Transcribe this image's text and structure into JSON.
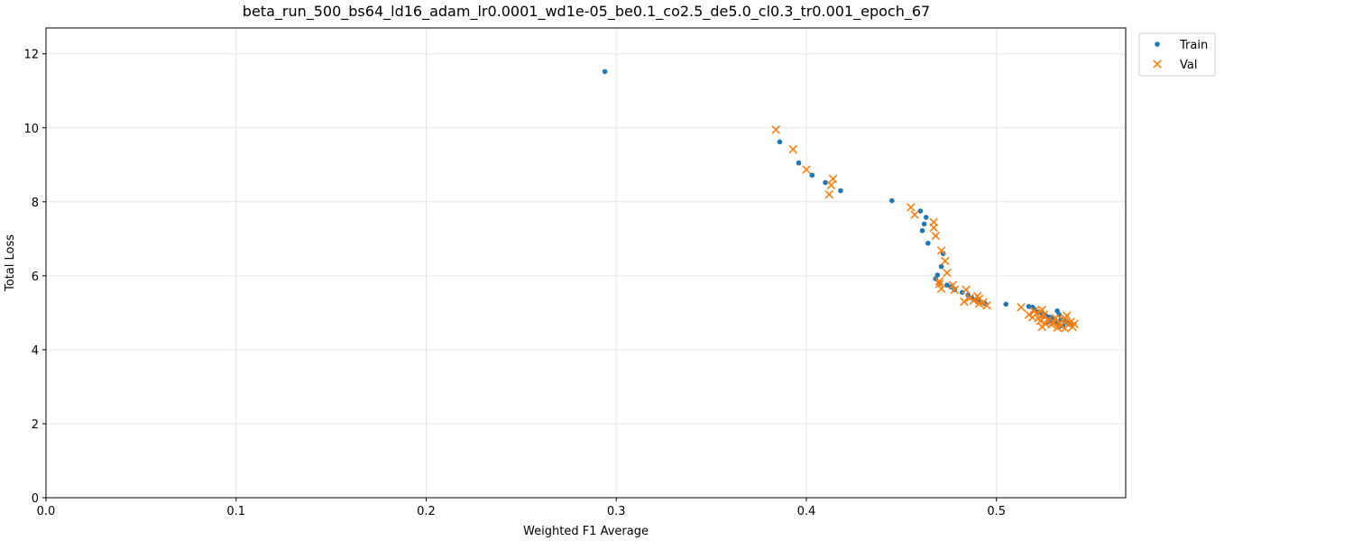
{
  "chart_data": {
    "type": "scatter",
    "title": "beta_run_500_bs64_ld16_adam_lr0.0001_wd1e-05_be0.1_co2.5_de5.0_cl0.3_tr0.001_epoch_67",
    "xlabel": "Weighted F1 Average",
    "ylabel": "Total Loss",
    "xlim": [
      0,
      0.568
    ],
    "ylim": [
      0,
      12.7
    ],
    "xticks": [
      0.0,
      0.1,
      0.2,
      0.3,
      0.4,
      0.5
    ],
    "xtick_labels": [
      "0.0",
      "0.1",
      "0.2",
      "0.3",
      "0.4",
      "0.5"
    ],
    "yticks": [
      0,
      2,
      4,
      6,
      8,
      10,
      12
    ],
    "ytick_labels": [
      "0",
      "2",
      "4",
      "6",
      "8",
      "10",
      "12"
    ],
    "grid": true,
    "legend": "outside-top-right",
    "series": [
      {
        "name": "Train",
        "marker": "circle",
        "color": "#1f77b4",
        "points": [
          [
            0.294,
            11.52
          ],
          [
            0.386,
            9.62
          ],
          [
            0.396,
            9.05
          ],
          [
            0.403,
            8.72
          ],
          [
            0.41,
            8.52
          ],
          [
            0.418,
            8.3
          ],
          [
            0.445,
            8.03
          ],
          [
            0.46,
            7.75
          ],
          [
            0.463,
            7.58
          ],
          [
            0.462,
            7.4
          ],
          [
            0.461,
            7.22
          ],
          [
            0.464,
            6.88
          ],
          [
            0.472,
            6.6
          ],
          [
            0.471,
            6.25
          ],
          [
            0.469,
            6.02
          ],
          [
            0.468,
            5.92
          ],
          [
            0.47,
            5.8
          ],
          [
            0.474,
            5.75
          ],
          [
            0.476,
            5.7
          ],
          [
            0.478,
            5.62
          ],
          [
            0.482,
            5.55
          ],
          [
            0.485,
            5.48
          ],
          [
            0.487,
            5.4
          ],
          [
            0.489,
            5.35
          ],
          [
            0.491,
            5.3
          ],
          [
            0.494,
            5.25
          ],
          [
            0.505,
            5.23
          ],
          [
            0.517,
            5.17
          ],
          [
            0.519,
            5.15
          ],
          [
            0.52,
            5.08
          ],
          [
            0.522,
            5.02
          ],
          [
            0.524,
            4.98
          ],
          [
            0.526,
            4.92
          ],
          [
            0.528,
            4.88
          ],
          [
            0.53,
            4.85
          ],
          [
            0.532,
            5.05
          ],
          [
            0.533,
            4.95
          ],
          [
            0.534,
            4.82
          ],
          [
            0.536,
            4.78
          ],
          [
            0.537,
            4.74
          ],
          [
            0.538,
            4.7
          ],
          [
            0.539,
            4.68
          ],
          [
            0.535,
            4.65
          ],
          [
            0.531,
            4.72
          ],
          [
            0.529,
            4.8
          ],
          [
            0.525,
            4.9
          ],
          [
            0.527,
            4.75
          ],
          [
            0.533,
            4.62
          ]
        ]
      },
      {
        "name": "Val",
        "marker": "x",
        "color": "#ff7f0e",
        "points": [
          [
            0.384,
            9.95
          ],
          [
            0.393,
            9.42
          ],
          [
            0.4,
            8.87
          ],
          [
            0.414,
            8.62
          ],
          [
            0.413,
            8.45
          ],
          [
            0.412,
            8.2
          ],
          [
            0.455,
            7.85
          ],
          [
            0.457,
            7.65
          ],
          [
            0.467,
            7.45
          ],
          [
            0.467,
            7.3
          ],
          [
            0.468,
            7.08
          ],
          [
            0.471,
            6.68
          ],
          [
            0.473,
            6.4
          ],
          [
            0.474,
            6.08
          ],
          [
            0.47,
            5.85
          ],
          [
            0.47,
            5.78
          ],
          [
            0.471,
            5.65
          ],
          [
            0.477,
            5.75
          ],
          [
            0.478,
            5.62
          ],
          [
            0.484,
            5.62
          ],
          [
            0.483,
            5.3
          ],
          [
            0.486,
            5.4
          ],
          [
            0.488,
            5.33
          ],
          [
            0.49,
            5.45
          ],
          [
            0.491,
            5.38
          ],
          [
            0.491,
            5.25
          ],
          [
            0.493,
            5.28
          ],
          [
            0.495,
            5.2
          ],
          [
            0.513,
            5.15
          ],
          [
            0.517,
            4.95
          ],
          [
            0.519,
            4.88
          ],
          [
            0.52,
            5.05
          ],
          [
            0.521,
            4.98
          ],
          [
            0.522,
            4.85
          ],
          [
            0.523,
            4.78
          ],
          [
            0.524,
            5.08
          ],
          [
            0.524,
            4.62
          ],
          [
            0.525,
            4.95
          ],
          [
            0.526,
            4.7
          ],
          [
            0.527,
            4.8
          ],
          [
            0.529,
            4.68
          ],
          [
            0.53,
            4.75
          ],
          [
            0.531,
            4.85
          ],
          [
            0.532,
            4.6
          ],
          [
            0.533,
            4.72
          ],
          [
            0.534,
            4.65
          ],
          [
            0.535,
            4.8
          ],
          [
            0.536,
            4.58
          ],
          [
            0.537,
            4.92
          ],
          [
            0.538,
            4.68
          ],
          [
            0.539,
            4.75
          ],
          [
            0.54,
            4.62
          ],
          [
            0.541,
            4.7
          ],
          [
            0.536,
            4.85
          ]
        ]
      }
    ]
  }
}
